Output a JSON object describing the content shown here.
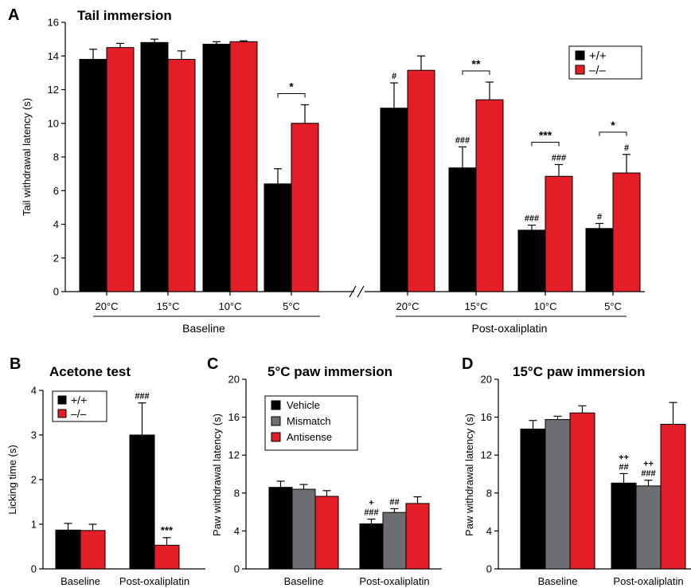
{
  "colors": {
    "wt": "#000000",
    "ko": "#e41e26",
    "vehicle": "#000000",
    "mismatch": "#6d6e71",
    "antisense": "#e41e26"
  },
  "chart_data": [
    {
      "panel": "A",
      "title": "Tail immersion",
      "type": "bar",
      "ylabel": "Tail withdrawal latency (s)",
      "ylim": [
        0,
        16
      ],
      "yticks": [
        0,
        2,
        4,
        6,
        8,
        10,
        12,
        14,
        16
      ],
      "groups": [
        "Baseline",
        "Post-oxaliplatin"
      ],
      "categories": [
        "20°C",
        "15°C",
        "10°C",
        "5°C",
        "20°C",
        "15°C",
        "10°C",
        "5°C"
      ],
      "series": [
        {
          "name": "+/+",
          "values": [
            13.8,
            14.8,
            14.7,
            6.4,
            10.9,
            7.35,
            3.65,
            3.75
          ],
          "errors": [
            0.6,
            0.2,
            0.15,
            0.9,
            1.5,
            1.25,
            0.3,
            0.3
          ]
        },
        {
          "name": "–/–",
          "values": [
            14.5,
            13.8,
            14.85,
            10.0,
            13.15,
            11.4,
            6.85,
            7.05
          ],
          "errors": [
            0.25,
            0.5,
            0.05,
            1.1,
            0.85,
            1.05,
            0.7,
            1.1
          ]
        }
      ],
      "annotations": {
        "wt": [
          "",
          "",
          "",
          "",
          "#",
          "###",
          "###",
          "#"
        ],
        "ko": [
          "",
          "",
          "",
          "",
          "",
          "",
          "###",
          "#"
        ],
        "brackets": [
          "",
          "",
          "",
          "*",
          "",
          "**",
          "***",
          "*"
        ]
      },
      "legend": "top-right"
    },
    {
      "panel": "B",
      "title": "Acetone test",
      "type": "bar",
      "ylabel": "Licking time (s)",
      "ylim": [
        0,
        4
      ],
      "yticks": [
        0,
        1,
        2,
        3,
        4
      ],
      "categories": [
        "Baseline",
        "Post-oxaliplatin"
      ],
      "series": [
        {
          "name": "+/+",
          "values": [
            0.87,
            3.0
          ],
          "errors": [
            0.15,
            0.72
          ]
        },
        {
          "name": "–/–",
          "values": [
            0.86,
            0.53
          ],
          "errors": [
            0.14,
            0.17
          ]
        }
      ],
      "annotations": {
        "wt": [
          "",
          "###"
        ],
        "ko": [
          "",
          "***"
        ]
      },
      "legend": "top-left"
    },
    {
      "panel": "C",
      "title": "5°C paw immersion",
      "type": "bar",
      "ylabel": "Paw withdrawal latency (s)",
      "ylim": [
        0,
        20
      ],
      "yticks": [
        0,
        4,
        8,
        12,
        16,
        20
      ],
      "categories": [
        "Baseline",
        "Post-oxaliplatin"
      ],
      "series": [
        {
          "name": "Vehicle",
          "values": [
            8.6,
            4.75
          ],
          "errors": [
            0.65,
            0.5
          ]
        },
        {
          "name": "Mismatch",
          "values": [
            8.4,
            5.95
          ],
          "errors": [
            0.5,
            0.4
          ]
        },
        {
          "name": "Antisense",
          "values": [
            7.65,
            6.9
          ],
          "errors": [
            0.6,
            0.7
          ]
        }
      ],
      "annotations": {
        "s0": [
          "",
          "###"
        ],
        "s0b": [
          "",
          "+"
        ],
        "s1": [
          "",
          "##"
        ],
        "s1b": [
          "",
          ""
        ]
      },
      "legend": "top-left"
    },
    {
      "panel": "D",
      "title": "15°C paw immersion",
      "type": "bar",
      "ylabel": "Paw withdrawal latency (s)",
      "ylim": [
        0,
        20
      ],
      "yticks": [
        0,
        4,
        8,
        12,
        16,
        20
      ],
      "categories": [
        "Baseline",
        "Post-oxaliplatin"
      ],
      "series": [
        {
          "name": "Vehicle",
          "values": [
            14.75,
            9.05
          ],
          "errors": [
            0.9,
            1.0
          ]
        },
        {
          "name": "Mismatch",
          "values": [
            15.75,
            8.75
          ],
          "errors": [
            0.35,
            0.6
          ]
        },
        {
          "name": "Antisense",
          "values": [
            16.45,
            15.25
          ],
          "errors": [
            0.75,
            2.3
          ]
        }
      ],
      "annotations": {
        "s0": [
          "",
          "##"
        ],
        "s0b": [
          "",
          "++"
        ],
        "s1": [
          "",
          "###"
        ],
        "s1b": [
          "",
          "++"
        ]
      }
    }
  ],
  "break_mark": "//"
}
